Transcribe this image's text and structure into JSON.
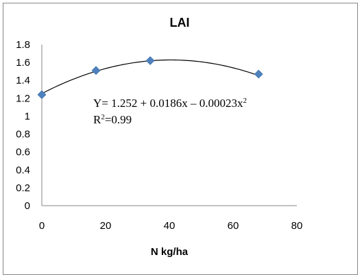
{
  "chart_data": {
    "type": "scatter",
    "title": "LAI",
    "xlabel": "N kg/ha",
    "ylabel": "",
    "xlim": [
      0,
      80
    ],
    "ylim": [
      0,
      1.8
    ],
    "xticks": [
      "0",
      "20",
      "40",
      "60",
      "80"
    ],
    "yticks": [
      "0",
      "0.2",
      "0.4",
      "0.6",
      "0.8",
      "1",
      "1.2",
      "1.4",
      "1.6",
      "1.8"
    ],
    "grid": false,
    "legend": "none",
    "series": [
      {
        "x": [
          0,
          17,
          34,
          68
        ],
        "y": [
          1.24,
          1.51,
          1.62,
          1.47
        ],
        "marker": "diamond",
        "color": "#4F81BD"
      }
    ],
    "trendline": {
      "kind": "polynomial",
      "coefficients": [
        1.252,
        0.0186,
        -0.00023
      ],
      "color": "#000000"
    },
    "annotations": {
      "equation_prefix": "Y= 1.252 + 0.0186x – 0.00023x",
      "equation_sup": "2",
      "r2_prefix": "R",
      "r2_sup": "2",
      "r2_suffix": "=0.99"
    }
  }
}
